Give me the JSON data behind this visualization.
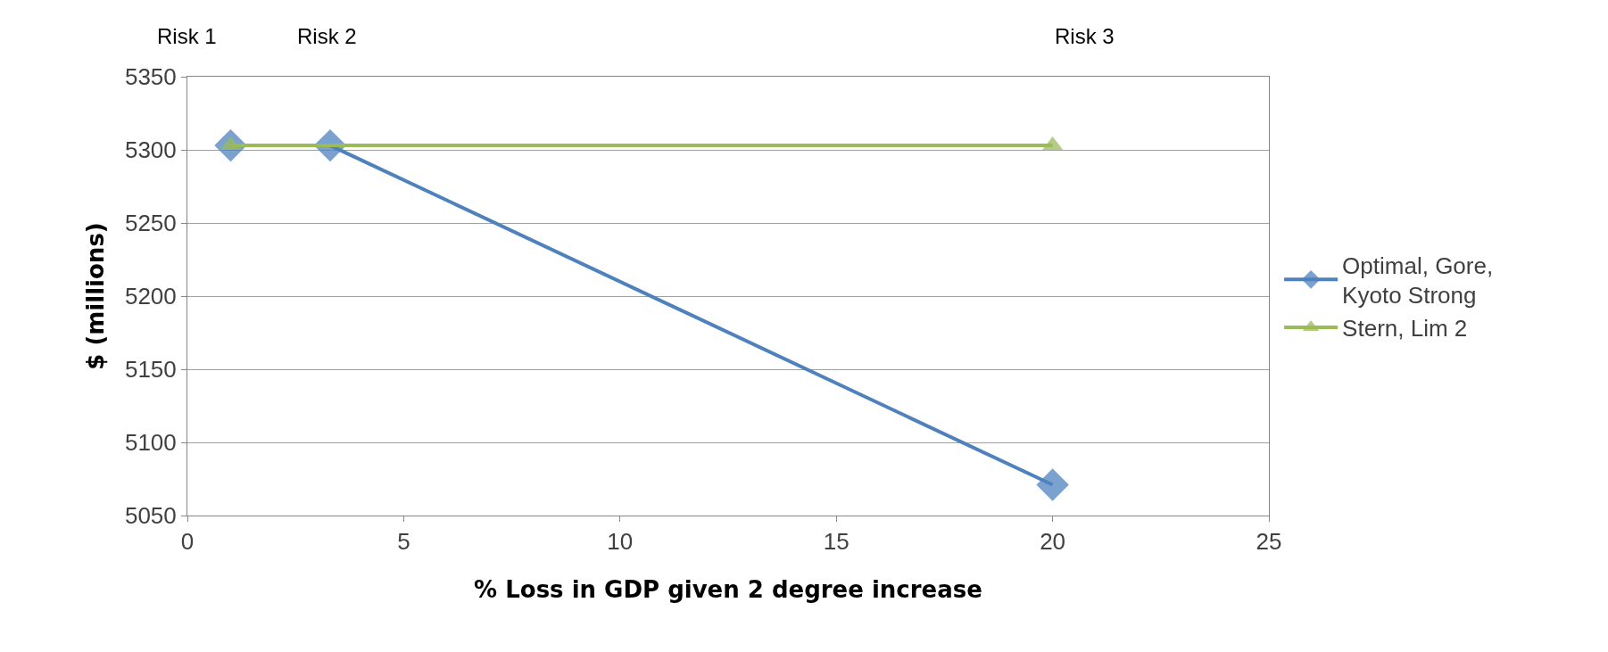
{
  "chart_data": {
    "type": "line",
    "xlabel": "% Loss in GDP given 2 degree increase",
    "ylabel": "$ (millions)",
    "xlim": [
      0,
      25
    ],
    "xticks": [
      0,
      5,
      10,
      15,
      20,
      25
    ],
    "ylim": [
      5050,
      5350
    ],
    "yticks": [
      5050,
      5100,
      5150,
      5200,
      5250,
      5300,
      5350
    ],
    "grid": "y",
    "legend": "right",
    "line_style": "solid",
    "annotations": [
      "Risk 1",
      "Risk 2",
      "Risk 3"
    ],
    "series": [
      {
        "name": "Optimal, Gore, Kyoto Strong",
        "color": "#4f81bd",
        "marker": "diamond",
        "x": [
          1,
          3.3,
          20
        ],
        "values": [
          5303,
          5303,
          5071
        ]
      },
      {
        "name": "Stern, Lim 2",
        "color": "#9bbb59",
        "marker": "triangle",
        "x": [
          1,
          20
        ],
        "values": [
          5303,
          5303
        ]
      }
    ]
  }
}
